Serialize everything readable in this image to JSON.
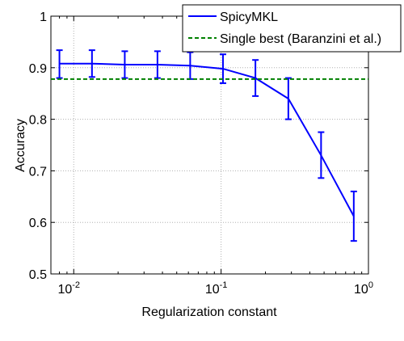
{
  "chart_data": {
    "type": "line",
    "xlabel": "Regularization constant",
    "ylabel": "Accuracy",
    "xscale": "log",
    "xlim": [
      0.007,
      1
    ],
    "ylim": [
      0.5,
      1
    ],
    "x_ticks": [
      {
        "value": 0.01,
        "base": "10",
        "exp": "-2"
      },
      {
        "value": 0.1,
        "base": "10",
        "exp": "-1"
      },
      {
        "value": 1,
        "base": "10",
        "exp": "0"
      }
    ],
    "y_ticks": [
      "0.5",
      "0.6",
      "0.7",
      "0.8",
      "0.9",
      "1"
    ],
    "grid": true,
    "legend_position": "top-right",
    "series": [
      {
        "name": "SpicyMKL",
        "color": "#0000ff",
        "style": "solid-with-errorbars",
        "x": [
          0.008,
          0.0133,
          0.0222,
          0.037,
          0.0617,
          0.103,
          0.171,
          0.286,
          0.477,
          0.795
        ],
        "y": [
          0.908,
          0.908,
          0.906,
          0.906,
          0.904,
          0.898,
          0.88,
          0.84,
          0.73,
          0.612
        ],
        "err_low": [
          0.88,
          0.882,
          0.88,
          0.88,
          0.878,
          0.87,
          0.845,
          0.8,
          0.686,
          0.564
        ],
        "err_high": [
          0.934,
          0.934,
          0.932,
          0.932,
          0.93,
          0.926,
          0.915,
          0.88,
          0.775,
          0.66
        ]
      },
      {
        "name": "Single best (Baranzini et al.)",
        "color": "#008000",
        "style": "dashed",
        "y_const": 0.878
      }
    ]
  }
}
